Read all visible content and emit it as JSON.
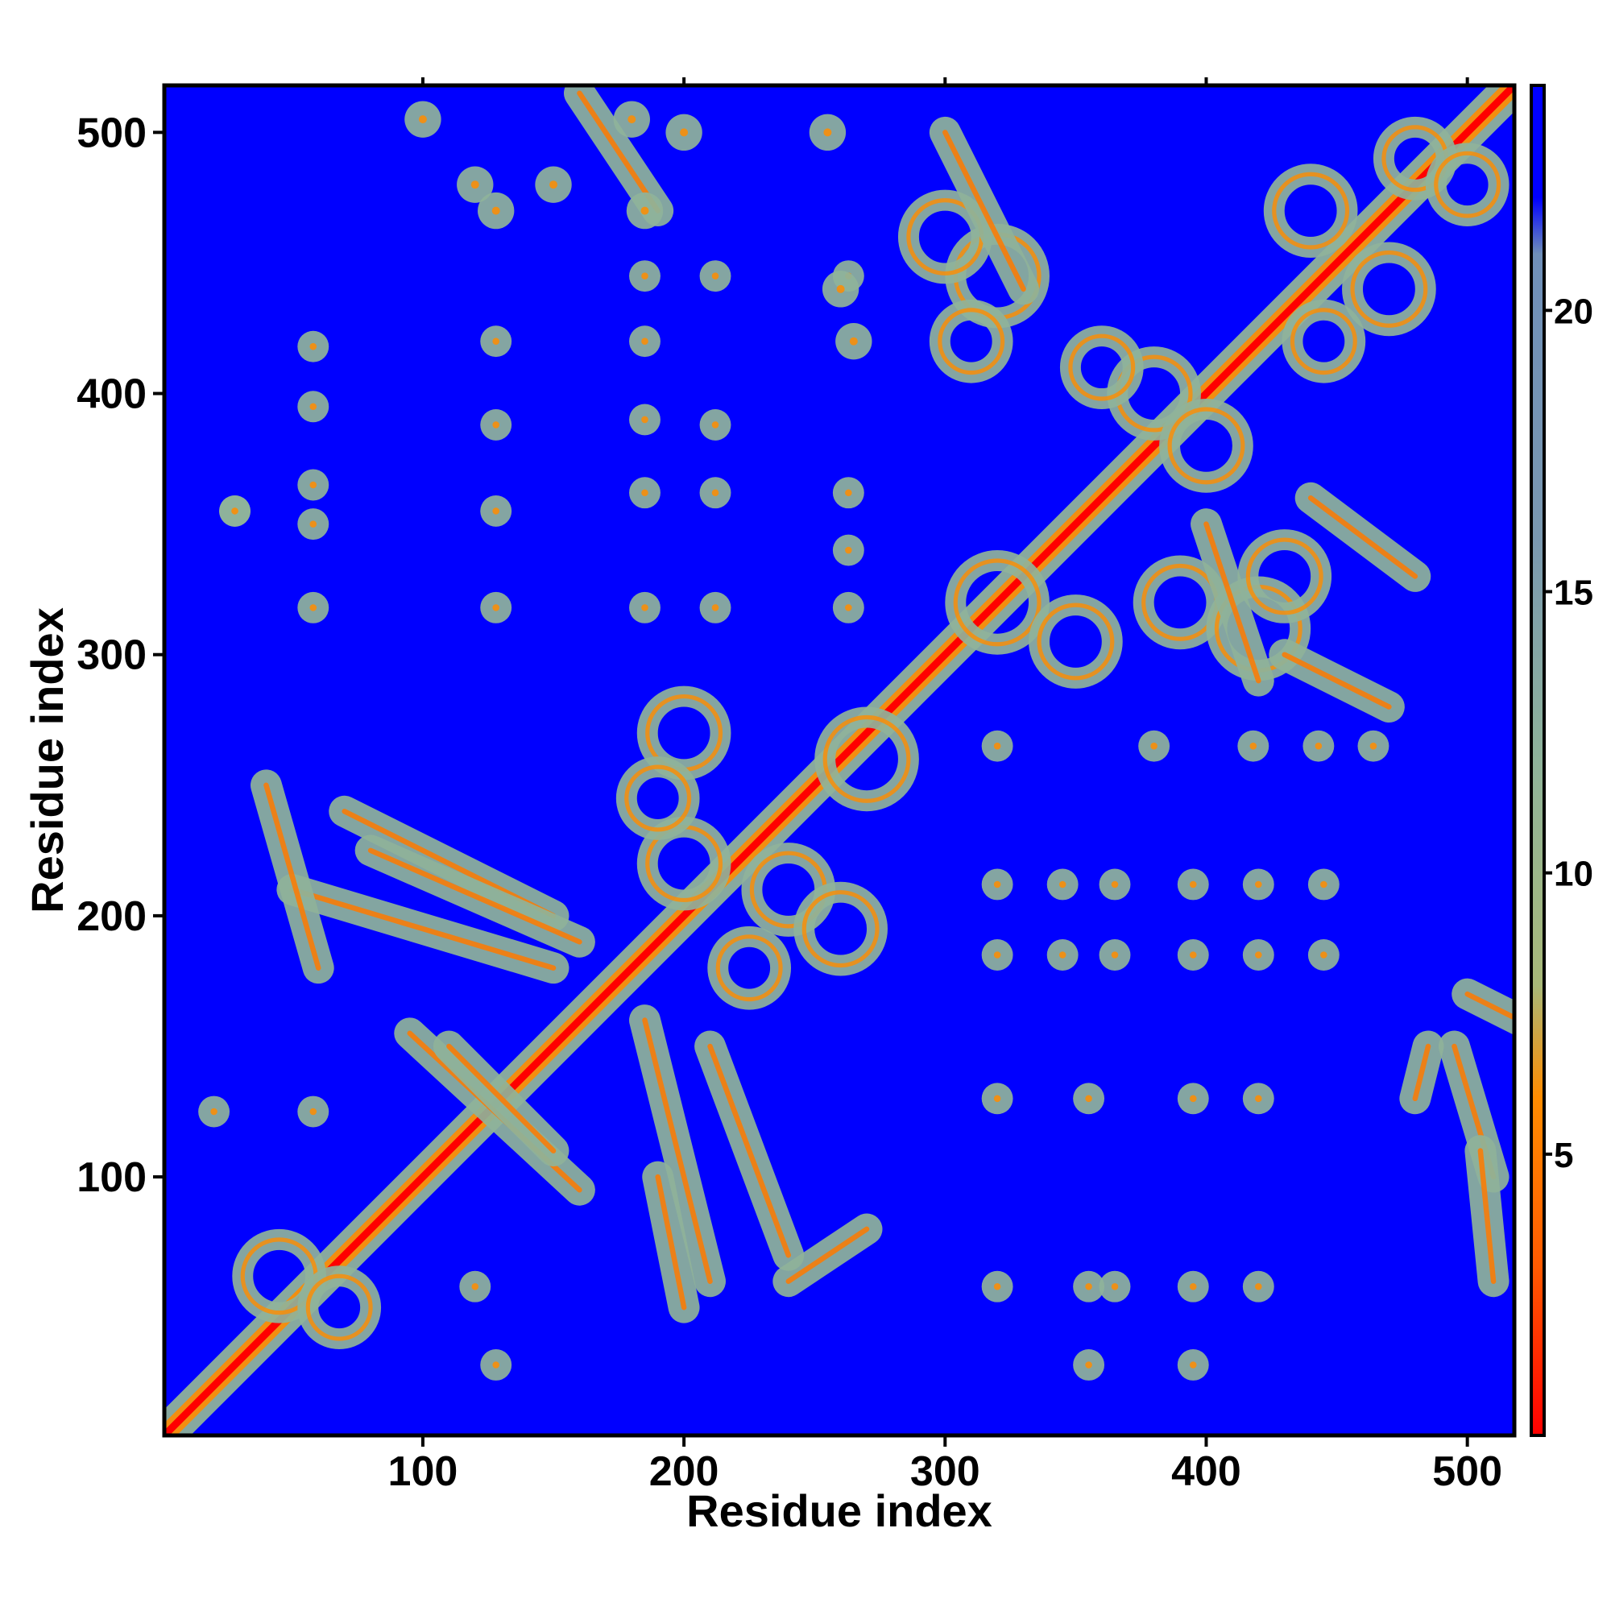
{
  "chart_data": {
    "type": "heatmap",
    "xlabel": "Residue index",
    "ylabel": "Residue index",
    "xlim": [
      1,
      518
    ],
    "ylim": [
      1,
      518
    ],
    "x_ticks": [
      100,
      200,
      300,
      400,
      500
    ],
    "y_ticks": [
      100,
      200,
      300,
      400,
      500
    ],
    "colorbar": {
      "ticks": [
        5,
        10,
        15,
        20
      ],
      "range": [
        0,
        24
      ],
      "colors": [
        {
          "stop": 0,
          "color": "#ff0000"
        },
        {
          "stop": 3,
          "color": "#ff5a00"
        },
        {
          "stop": 6,
          "color": "#ff8c00"
        },
        {
          "stop": 8,
          "color": "#a8b878"
        },
        {
          "stop": 12,
          "color": "#8fb39a"
        },
        {
          "stop": 16,
          "color": "#7a98b0"
        },
        {
          "stop": 21,
          "color": "#6f8fb8"
        },
        {
          "stop": 22,
          "color": "#0000ff"
        },
        {
          "stop": 24,
          "color": "#0000ff"
        }
      ]
    },
    "background_color": "#0000ff",
    "diagonal_color": "#ff0000",
    "halo_color": "#8fb39a",
    "description_features": {
      "diagonal": true,
      "helix_blocks": [
        [
          1,
          160
        ],
        [
          165,
          290
        ],
        [
          290,
          518
        ]
      ],
      "blobs": [
        [
          28,
          355
        ],
        [
          58,
          395
        ],
        [
          58,
          365
        ],
        [
          58,
          350
        ],
        [
          58,
          318
        ],
        [
          58,
          418
        ],
        [
          128,
          388
        ],
        [
          128,
          355
        ],
        [
          128,
          318
        ],
        [
          128,
          420
        ],
        [
          185,
          420
        ],
        [
          185,
          390
        ],
        [
          185,
          362
        ],
        [
          185,
          318
        ],
        [
          185,
          445
        ],
        [
          212,
          388
        ],
        [
          212,
          362
        ],
        [
          212,
          318
        ],
        [
          212,
          445
        ],
        [
          263,
          445
        ],
        [
          263,
          340
        ],
        [
          263,
          318
        ],
        [
          263,
          362
        ],
        [
          320,
          265
        ],
        [
          380,
          265
        ],
        [
          418,
          265
        ],
        [
          443,
          265
        ],
        [
          464,
          265
        ],
        [
          320,
          212
        ],
        [
          345,
          212
        ],
        [
          365,
          212
        ],
        [
          395,
          212
        ],
        [
          420,
          212
        ],
        [
          445,
          212
        ],
        [
          320,
          185
        ],
        [
          345,
          185
        ],
        [
          365,
          185
        ],
        [
          395,
          185
        ],
        [
          420,
          185
        ],
        [
          445,
          185
        ],
        [
          320,
          130
        ],
        [
          355,
          130
        ],
        [
          395,
          130
        ],
        [
          420,
          130
        ],
        [
          320,
          58
        ],
        [
          355,
          58
        ],
        [
          365,
          58
        ],
        [
          395,
          58
        ],
        [
          420,
          58
        ],
        [
          355,
          28
        ],
        [
          395,
          28
        ],
        [
          120,
          58
        ],
        [
          128,
          28
        ],
        [
          20,
          125
        ],
        [
          58,
          125
        ],
        [
          28,
          355
        ]
      ]
    }
  }
}
